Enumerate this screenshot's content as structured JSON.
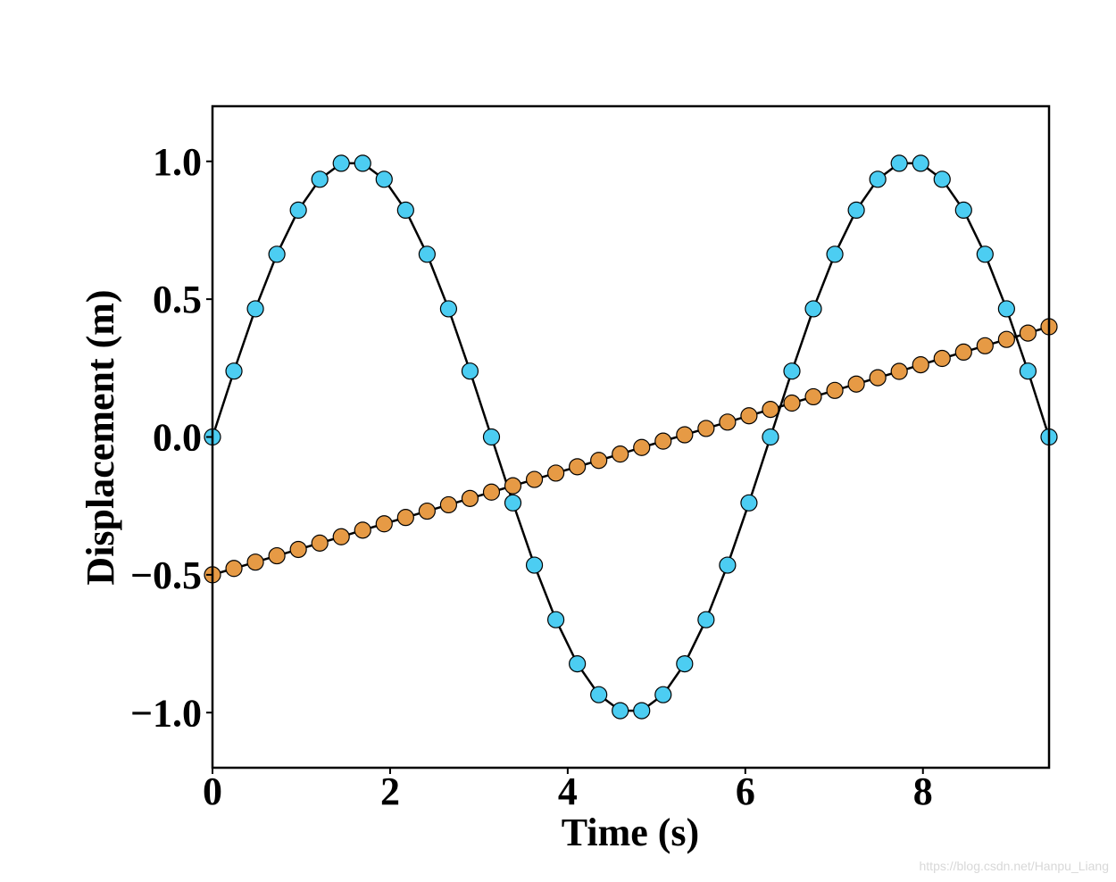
{
  "chart_data": {
    "type": "line",
    "xlabel": "Time (s)",
    "ylabel": "Displacement (m)",
    "xlim": [
      0,
      9.42
    ],
    "ylim": [
      -1.2,
      1.2
    ],
    "xticks": [
      0,
      2,
      4,
      6,
      8
    ],
    "xtick_labels": [
      "0",
      "2",
      "4",
      "6",
      "8"
    ],
    "yticks": [
      1.0,
      0.5,
      0.0,
      -0.5,
      -1.0
    ],
    "ytick_labels": [
      "1.0",
      "0.5",
      "0.0",
      "−0.5",
      "−1.0"
    ],
    "grid": false,
    "legend": "none",
    "series": [
      {
        "color": "#4ccdf2",
        "line_color": "#000000",
        "x": [
          0,
          0.2417,
          0.4833,
          0.725,
          0.9666,
          1.2083,
          1.4499,
          1.6916,
          1.9332,
          2.1749,
          2.4165,
          2.6582,
          2.8998,
          3.1415,
          3.3832,
          3.6248,
          3.8665,
          4.1081,
          4.3498,
          4.5914,
          4.8331,
          5.0747,
          5.3164,
          5.558,
          5.7997,
          6.0413,
          6.283,
          6.5247,
          6.7663,
          7.008,
          7.2496,
          7.4913,
          7.7329,
          7.9746,
          8.2162,
          8.4579,
          8.6995,
          8.9412,
          9.1828,
          9.42
        ],
        "values": [
          0.0,
          0.239,
          0.465,
          0.663,
          0.823,
          0.935,
          0.993,
          0.993,
          0.935,
          0.823,
          0.663,
          0.465,
          0.239,
          0.0,
          -0.239,
          -0.465,
          -0.663,
          -0.823,
          -0.935,
          -0.993,
          -0.993,
          -0.935,
          -0.823,
          -0.663,
          -0.465,
          -0.239,
          0.0,
          0.239,
          0.465,
          0.663,
          0.823,
          0.935,
          0.993,
          0.993,
          0.935,
          0.823,
          0.663,
          0.465,
          0.239,
          0.0
        ]
      },
      {
        "color": "#e69a45",
        "line_color": "#000000",
        "x": [
          0,
          0.2417,
          0.4833,
          0.725,
          0.9666,
          1.2083,
          1.4499,
          1.6916,
          1.9332,
          2.1749,
          2.4165,
          2.6582,
          2.8998,
          3.1415,
          3.3832,
          3.6248,
          3.8665,
          4.1081,
          4.3498,
          4.5914,
          4.8331,
          5.0747,
          5.3164,
          5.558,
          5.7997,
          6.0413,
          6.283,
          6.5247,
          6.7663,
          7.008,
          7.2496,
          7.4913,
          7.7329,
          7.9746,
          8.2162,
          8.4579,
          8.6995,
          8.9412,
          9.1828,
          9.42
        ],
        "values": [
          -0.5,
          -0.477,
          -0.454,
          -0.431,
          -0.408,
          -0.385,
          -0.362,
          -0.338,
          -0.315,
          -0.292,
          -0.269,
          -0.246,
          -0.223,
          -0.2,
          -0.177,
          -0.154,
          -0.131,
          -0.108,
          -0.085,
          -0.062,
          -0.038,
          -0.015,
          0.008,
          0.031,
          0.054,
          0.077,
          0.1,
          0.123,
          0.146,
          0.169,
          0.192,
          0.215,
          0.238,
          0.262,
          0.285,
          0.308,
          0.331,
          0.354,
          0.377,
          0.4
        ]
      }
    ]
  },
  "watermark": "https://blog.csdn.net/Hanpu_Liang"
}
